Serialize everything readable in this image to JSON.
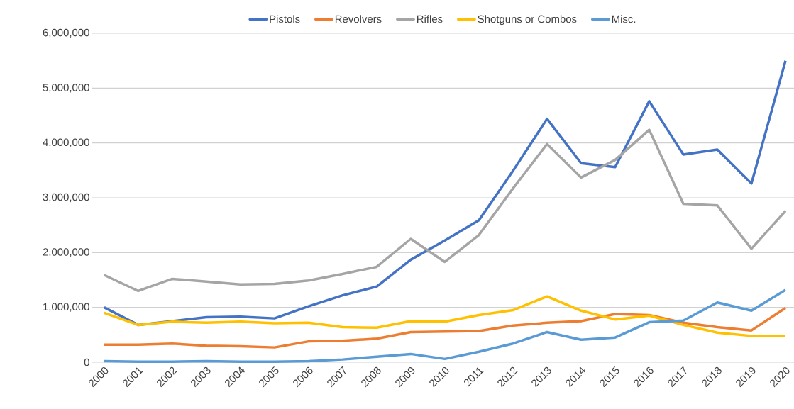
{
  "chart_data": {
    "type": "line",
    "categories": [
      "2000",
      "2001",
      "2002",
      "2003",
      "2004",
      "2005",
      "2006",
      "2007",
      "2008",
      "2009",
      "2010",
      "2011",
      "2012",
      "2013",
      "2014",
      "2015",
      "2016",
      "2017",
      "2018",
      "2019",
      "2020"
    ],
    "series": [
      {
        "name": "Pistols",
        "color": "#4472c4",
        "values": [
          1000000,
          680000,
          750000,
          820000,
          830000,
          800000,
          1020000,
          1220000,
          1380000,
          1870000,
          2220000,
          2590000,
          3490000,
          4440000,
          3630000,
          3560000,
          4760000,
          3790000,
          3880000,
          3260000,
          5500000
        ]
      },
      {
        "name": "Revolvers",
        "color": "#ed7d31",
        "values": [
          320000,
          320000,
          340000,
          300000,
          290000,
          270000,
          380000,
          390000,
          430000,
          550000,
          560000,
          570000,
          670000,
          720000,
          750000,
          880000,
          860000,
          720000,
          640000,
          580000,
          990000
        ]
      },
      {
        "name": "Rifles",
        "color": "#a5a5a5",
        "values": [
          1590000,
          1300000,
          1520000,
          1470000,
          1420000,
          1430000,
          1490000,
          1610000,
          1740000,
          2250000,
          1830000,
          2320000,
          3170000,
          3980000,
          3370000,
          3690000,
          4240000,
          2890000,
          2860000,
          2070000,
          2760000
        ]
      },
      {
        "name": "Shotguns or Combos",
        "color": "#ffc000",
        "values": [
          900000,
          680000,
          740000,
          720000,
          740000,
          710000,
          720000,
          640000,
          630000,
          750000,
          740000,
          860000,
          950000,
          1200000,
          940000,
          780000,
          850000,
          680000,
          540000,
          480000,
          480000
        ]
      },
      {
        "name": "Misc.",
        "color": "#5b9bd5",
        "values": [
          20000,
          10000,
          10000,
          20000,
          10000,
          10000,
          20000,
          50000,
          100000,
          150000,
          60000,
          190000,
          340000,
          550000,
          410000,
          450000,
          730000,
          760000,
          1090000,
          940000,
          1320000
        ]
      }
    ],
    "ylim": [
      0,
      6000000
    ],
    "yticks": [
      {
        "value": 0,
        "label": "0"
      },
      {
        "value": 1000000,
        "label": "1,000,000"
      },
      {
        "value": 2000000,
        "label": "2,000,000"
      },
      {
        "value": 3000000,
        "label": "3,000,000"
      },
      {
        "value": 4000000,
        "label": "4,000,000"
      },
      {
        "value": 5000000,
        "label": "5,000,000"
      },
      {
        "value": 6000000,
        "label": "6,000,000"
      }
    ],
    "grid": "y",
    "legend": "top",
    "marker": "none",
    "line_style": "solid"
  }
}
